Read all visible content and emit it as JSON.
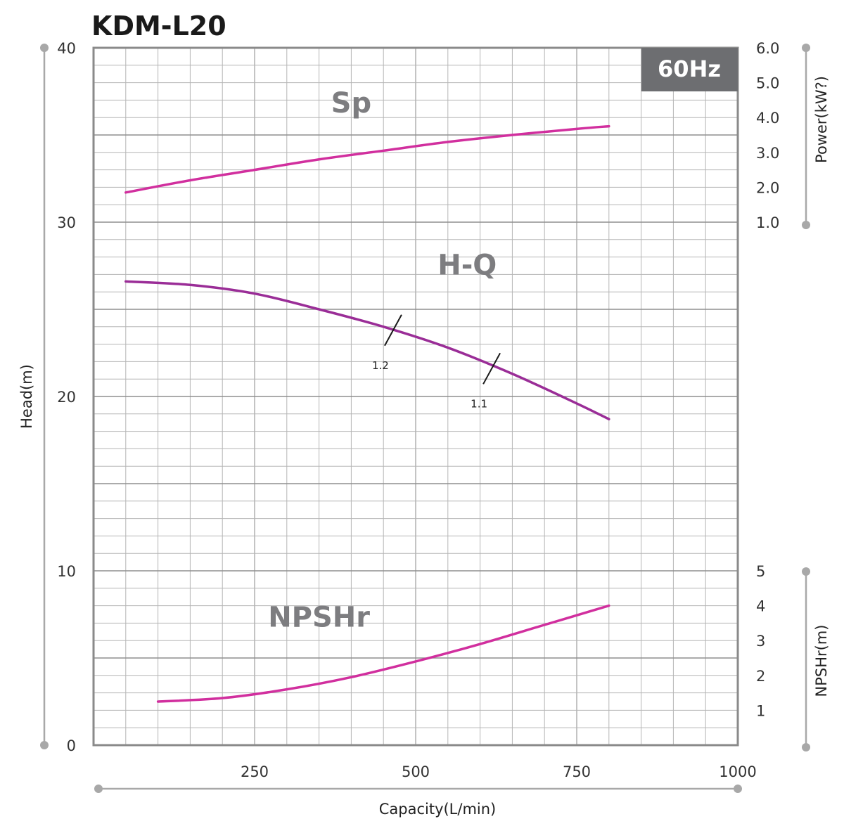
{
  "title": "KDM-L20",
  "frequency_badge": "60Hz",
  "colors": {
    "sp_curve": "#d12f9e",
    "hq_curve": "#9a2d97",
    "npshr_curve": "#d12f9e",
    "grid": "#b5b5b5",
    "frame": "#8a8a8a",
    "badge_bg": "#6d6e71",
    "curve_label": "#7d7d80"
  },
  "chart_data": {
    "type": "line",
    "title": "KDM-L20",
    "xlabel": "Capacity(L/min)",
    "ylabel": "Head(m)",
    "y2label": "Power(kW?)",
    "y3label": "NPSHr(m)",
    "xlim": [
      0,
      1000
    ],
    "ylim": [
      0,
      40
    ],
    "x_ticks": [
      "250",
      "500",
      "750",
      "1000"
    ],
    "y_ticks": [
      "0",
      "10",
      "20",
      "30",
      "40"
    ],
    "power_ticks": [
      "1.0",
      "2.0",
      "3.0",
      "4.0",
      "5.0",
      "6.0"
    ],
    "npshr_ticks": [
      "1",
      "2",
      "3",
      "4",
      "5"
    ],
    "grid": true,
    "series": [
      {
        "name": "H-Q",
        "axis": "head",
        "x": [
          50,
          150,
          250,
          350,
          450,
          550,
          650,
          750,
          800
        ],
        "y": [
          26.6,
          26.4,
          25.9,
          25.0,
          24.0,
          22.8,
          21.3,
          19.6,
          18.7
        ]
      },
      {
        "name": "Sp",
        "axis": "head",
        "x": [
          50,
          150,
          250,
          350,
          450,
          550,
          650,
          750,
          800
        ],
        "y": [
          31.7,
          32.4,
          33.0,
          33.6,
          34.1,
          34.6,
          35.0,
          35.35,
          35.5
        ]
      },
      {
        "name": "NPSHr",
        "axis": "head",
        "x": [
          100,
          200,
          300,
          400,
          500,
          600,
          700,
          800
        ],
        "y": [
          2.5,
          2.7,
          3.2,
          3.9,
          4.8,
          5.8,
          6.9,
          8.0
        ]
      }
    ],
    "efficiency_marks": [
      {
        "label": "1.2",
        "x": 465,
        "y": 23.8
      },
      {
        "label": "1.1",
        "x": 618,
        "y": 21.6
      }
    ]
  }
}
